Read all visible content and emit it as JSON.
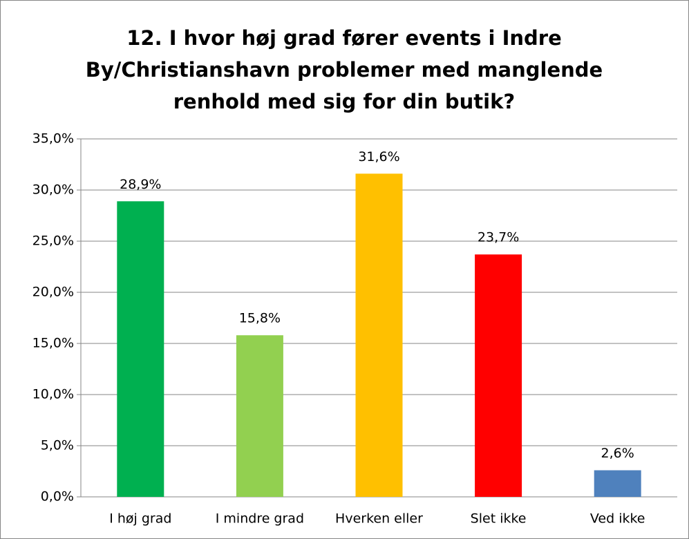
{
  "chart_data": {
    "type": "bar",
    "title": [
      "12. I hvor høj grad fører events i Indre",
      "By/Christianshavn problemer med manglende",
      "renhold med sig for din butik?"
    ],
    "categories": [
      "I høj grad",
      "I mindre grad",
      "Hverken eller",
      "Slet ikke",
      "Ved ikke"
    ],
    "values": [
      28.9,
      15.8,
      31.6,
      23.7,
      2.6
    ],
    "value_labels": [
      "28,9%",
      "15,8%",
      "31,6%",
      "23,7%",
      "2,6%"
    ],
    "colors": [
      "#00b050",
      "#92d050",
      "#ffc000",
      "#ff0000",
      "#4f81bd"
    ],
    "ylim": [
      0,
      35
    ],
    "yticks": [
      {
        "value": 0,
        "label": "0,0%"
      },
      {
        "value": 5,
        "label": "5,0%"
      },
      {
        "value": 10,
        "label": "10,0%"
      },
      {
        "value": 15,
        "label": "15,0%"
      },
      {
        "value": 20,
        "label": "20,0%"
      },
      {
        "value": 25,
        "label": "25,0%"
      },
      {
        "value": 30,
        "label": "30,0%"
      },
      {
        "value": 35,
        "label": "35,0%"
      }
    ],
    "grid": true
  }
}
